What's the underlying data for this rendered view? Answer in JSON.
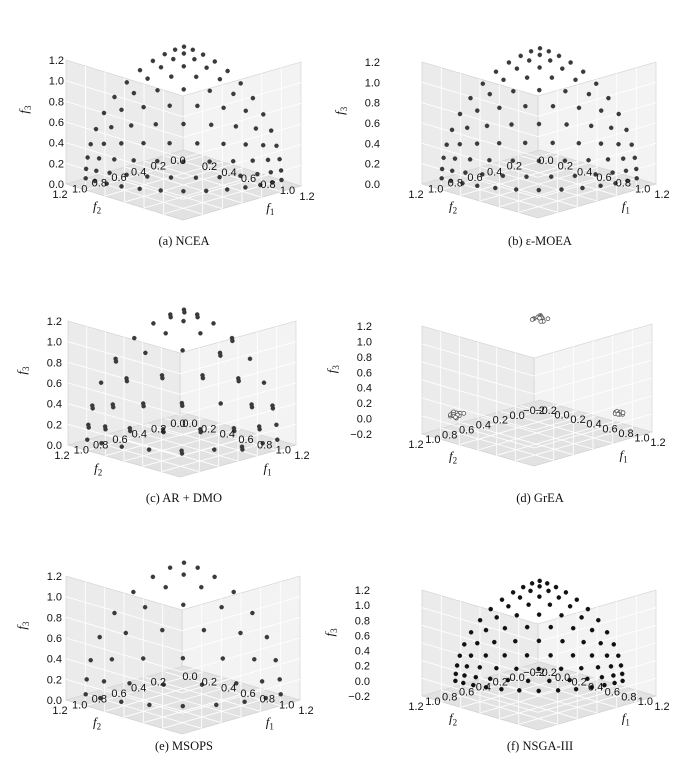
{
  "chart_data": [
    {
      "type": "scatter",
      "caption": "(a) NCEA",
      "xlabel": "f",
      "xlabel_sub": "1",
      "ylabel": "f",
      "ylabel_sub": "2",
      "zlabel": "f",
      "zlabel_sub": "3",
      "x_ticks": [
        "1.2",
        "1.0",
        "0.8",
        "0.6",
        "0.4",
        "0.2"
      ],
      "y_ticks": [
        "0.0",
        "0.2",
        "0.4",
        "0.6",
        "0.8",
        "1.0",
        "1.2"
      ],
      "z_ticks": [
        "0.0",
        "0.2",
        "0.4",
        "0.6",
        "0.8",
        "1.0",
        "1.2"
      ],
      "xlim": [
        0,
        1.2
      ],
      "ylim": [
        0,
        1.2
      ],
      "zlim": [
        0,
        1.2
      ],
      "distribution": "uniform-grid-sphere-octant",
      "n_divisions": 12,
      "marker_color": "#3a3a3a",
      "marker_style": "filled",
      "grid": true
    },
    {
      "type": "scatter",
      "caption": "(b) ε-MOEA",
      "xlabel": "f",
      "xlabel_sub": "1",
      "ylabel": "f",
      "ylabel_sub": "2",
      "zlabel": "f",
      "zlabel_sub": "3",
      "x_ticks": [
        "1.2",
        "1.0",
        "0.8",
        "0.6",
        "0.4",
        "0.2",
        "0.0"
      ],
      "y_ticks": [
        "0.2",
        "0.4",
        "0.6",
        "0.8",
        "1.0",
        "1.2"
      ],
      "z_ticks": [
        "0.0",
        "0.2",
        "0.4",
        "0.6",
        "0.8",
        "1.0",
        "1.2"
      ],
      "xlim": [
        0,
        1.2
      ],
      "ylim": [
        0,
        1.2
      ],
      "zlim": [
        0,
        1.2
      ],
      "distribution": "uniform-grid-sphere-octant",
      "n_divisions": 12,
      "marker_color": "#3a3a3a",
      "marker_style": "filled",
      "grid": true
    },
    {
      "type": "scatter",
      "caption": "(c) AR + DMO",
      "xlabel": "f",
      "xlabel_sub": "1",
      "ylabel": "f",
      "ylabel_sub": "2",
      "zlabel": "f",
      "zlabel_sub": "3",
      "x_ticks": [
        "1.2",
        "1.0",
        "0.8",
        "0.6",
        "0.4",
        "0.2",
        "0.0"
      ],
      "y_ticks": [
        "0.0",
        "0.2",
        "0.4",
        "0.6",
        "0.8",
        "1.0",
        "1.2"
      ],
      "z_ticks": [
        "0.0",
        "0.2",
        "0.4",
        "0.6",
        "0.8",
        "1.0",
        "1.2"
      ],
      "xlim": [
        0,
        1.2
      ],
      "ylim": [
        0,
        1.2
      ],
      "zlim": [
        0,
        1.2
      ],
      "distribution": "clustered-pairs-sphere-octant",
      "n_divisions": 8,
      "marker_color": "#3a3a3a",
      "marker_style": "filled",
      "grid": true
    },
    {
      "type": "scatter",
      "caption": "(d) GrEA",
      "xlabel": "f",
      "xlabel_sub": "1",
      "ylabel": "f",
      "ylabel_sub": "2",
      "zlabel": "f",
      "zlabel_sub": "3",
      "x_ticks": [
        "1.2",
        "1.0",
        "0.8",
        "0.6",
        "0.4",
        "0.2",
        "0.0",
        "−0.2"
      ],
      "y_ticks": [
        "−0.2",
        "0.0",
        "0.2",
        "0.4",
        "0.6",
        "0.8",
        "1.0",
        "1.2"
      ],
      "z_ticks": [
        "−0.2",
        "0.0",
        "0.2",
        "0.4",
        "0.6",
        "0.8",
        "1.0",
        "1.2"
      ],
      "xlim": [
        -0.2,
        1.2
      ],
      "ylim": [
        -0.2,
        1.2
      ],
      "zlim": [
        -0.2,
        1.2
      ],
      "distribution": "corner-clusters",
      "marker_color": "#555555",
      "marker_style": "hollow",
      "grid": true,
      "clusters": [
        {
          "center": [
            0.02,
            0.02,
            1.0
          ],
          "count": 16,
          "spread": 0.06
        },
        {
          "center": [
            0.02,
            1.0,
            0.05
          ],
          "count": 20,
          "spread": 0.06
        },
        {
          "center": [
            1.0,
            0.02,
            0.05
          ],
          "count": 10,
          "spread": 0.05
        }
      ]
    },
    {
      "type": "scatter",
      "caption": "(e) MSOPS",
      "xlabel": "f",
      "xlabel_sub": "1",
      "ylabel": "f",
      "ylabel_sub": "2",
      "zlabel": "f",
      "zlabel_sub": "3",
      "x_ticks": [
        "1.2",
        "1.0",
        "0.8",
        "0.6",
        "0.4",
        "0.2",
        "0.0"
      ],
      "y_ticks": [
        "0.2",
        "0.4",
        "0.6",
        "0.8",
        "1.0",
        "1.2"
      ],
      "z_ticks": [
        "0.0",
        "0.2",
        "0.4",
        "0.6",
        "0.8",
        "1.0",
        "1.2"
      ],
      "xlim": [
        0,
        1.2
      ],
      "ylim": [
        0,
        1.2
      ],
      "zlim": [
        0,
        1.2
      ],
      "distribution": "uniform-grid-sphere-octant",
      "n_divisions": 8,
      "marker_color": "#3a3a3a",
      "marker_style": "filled",
      "grid": true
    },
    {
      "type": "scatter",
      "caption": "(f) NSGA-III",
      "xlabel": "f",
      "xlabel_sub": "1",
      "ylabel": "f",
      "ylabel_sub": "2",
      "zlabel": "f",
      "zlabel_sub": "3",
      "x_ticks": [
        "1.2",
        "1.0",
        "0.8",
        "0.6",
        "0.4",
        "0.2",
        "0.0",
        "−0.2"
      ],
      "y_ticks": [
        "−0.2",
        "0.0",
        "0.2",
        "0.4",
        "0.6",
        "0.8",
        "1.0",
        "1.2"
      ],
      "z_ticks": [
        "−0.2",
        "0.0",
        "0.2",
        "0.4",
        "0.6",
        "0.8",
        "1.0",
        "1.2"
      ],
      "xlim": [
        -0.2,
        1.2
      ],
      "ylim": [
        -0.2,
        1.2
      ],
      "zlim": [
        -0.2,
        1.2
      ],
      "distribution": "uniform-grid-sphere-octant",
      "n_divisions": 12,
      "marker_color": "#111111",
      "marker_style": "filled",
      "grid": true
    }
  ],
  "colors": {
    "pane_left": "#f3f3f3",
    "pane_right": "#ebebeb",
    "pane_floor": "#e2e2e2",
    "grid": "#ffffff",
    "edge": "#cfcfcf"
  }
}
